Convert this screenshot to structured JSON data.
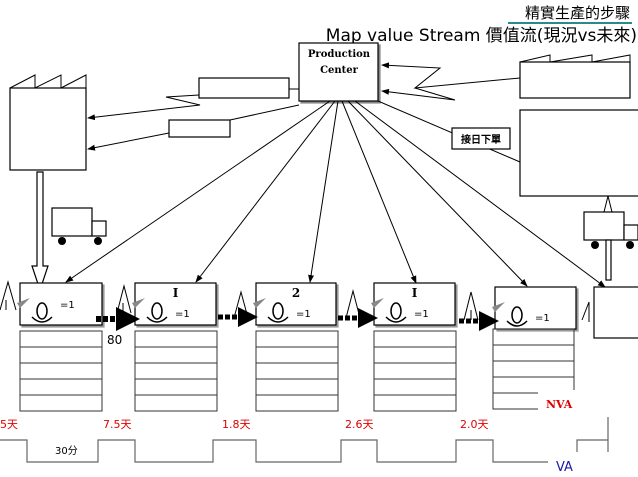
{
  "title": "精實生產的步驟",
  "subtitle": "Map value Stream 價值流(現況vs未來)",
  "production_center": {
    "line1": "Production",
    "line2": "Center"
  },
  "order_label": "接日下單",
  "processes": [
    {
      "top_label": "",
      "operators": "=1"
    },
    {
      "top_label": "I",
      "operators": "=1"
    },
    {
      "top_label": "2",
      "operators": "=1"
    },
    {
      "top_label": "I",
      "operators": "=1"
    },
    {
      "top_label": "",
      "operators": "=1"
    }
  ],
  "inventory_count": "80",
  "lead_times": [
    "5天",
    "7.5天",
    "1.8天",
    "2.6天",
    "2.0天"
  ],
  "cycle_time": "30分",
  "nva_label": "NVA",
  "va_label": "VA",
  "colors": {
    "lead_time": "#e00000",
    "nva": "#e00000",
    "va": "#1a1aa8",
    "title_underline": "#2a8a8a"
  }
}
